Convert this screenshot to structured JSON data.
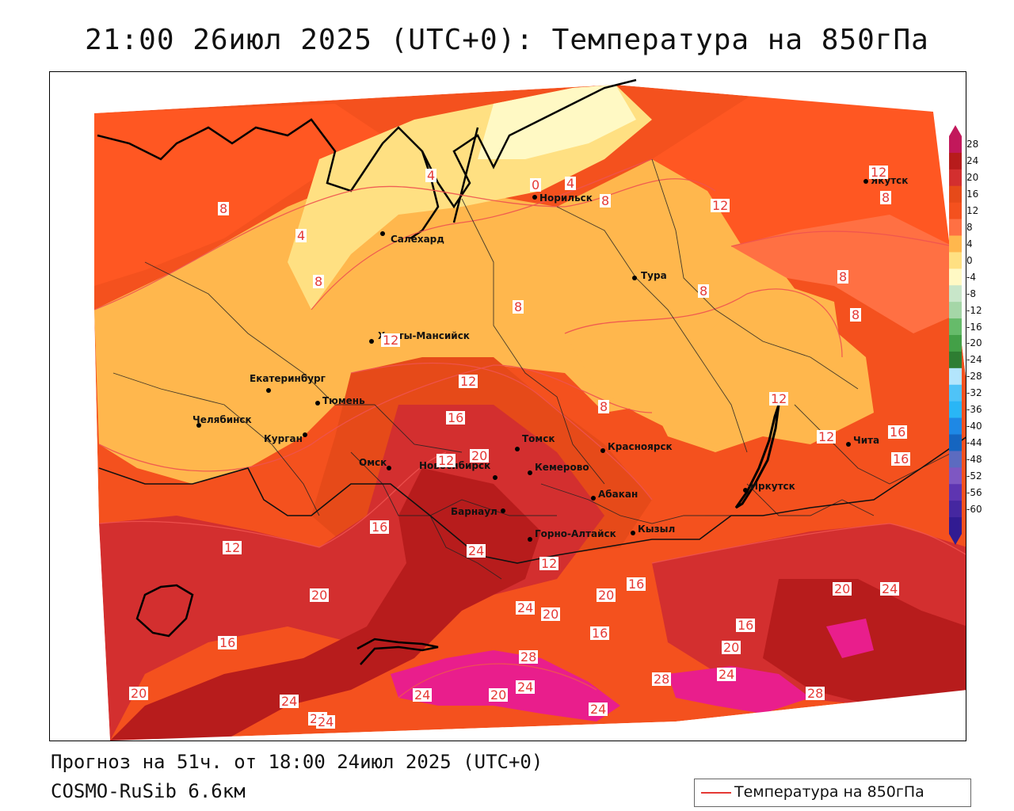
{
  "header": {
    "title": "21:00 26июл 2025 (UTC+0): Температура на 850гПа"
  },
  "footer": {
    "forecast": "Прогноз на 51ч. от 18:00 24июл 2025 (UTC+0)",
    "model": "COSMO-RuSib 6.6км"
  },
  "legend": {
    "label": "Температура на 850гПа",
    "line_color": "#e53935"
  },
  "colorbar": {
    "ticks": [
      "28",
      "24",
      "20",
      "16",
      "12",
      "8",
      "4",
      "0",
      "-4",
      "-8",
      "-12",
      "-16",
      "-20",
      "-24",
      "-28",
      "-32",
      "-36",
      "-40",
      "-44",
      "-48",
      "-52",
      "-56",
      "-60"
    ],
    "colors": [
      "#c2185b",
      "#b71c1c",
      "#d32f2f",
      "#e64a19",
      "#f4511e",
      "#ff7043",
      "#ffb74d",
      "#ffe082",
      "#fff9c4",
      "#c8e6c9",
      "#a5d6a7",
      "#66bb6a",
      "#43a047",
      "#2e7d32",
      "#b3e5fc",
      "#4fc3f7",
      "#29b6f6",
      "#1e88e5",
      "#1565c0",
      "#5c6bc0",
      "#7e57c2",
      "#5e35b1",
      "#4527a0",
      "#311b92"
    ]
  },
  "cities": [
    {
      "name": "Норильск"
    },
    {
      "name": "Якутск"
    },
    {
      "name": "Салехард"
    },
    {
      "name": "Тура"
    },
    {
      "name": "Ханты-Мансийск"
    },
    {
      "name": "Екатеринбург"
    },
    {
      "name": "Тюмень"
    },
    {
      "name": "Челябинск"
    },
    {
      "name": "Курган"
    },
    {
      "name": "Омск"
    },
    {
      "name": "Новосибирск"
    },
    {
      "name": "Томск"
    },
    {
      "name": "Кемерово"
    },
    {
      "name": "Красноярск"
    },
    {
      "name": "Абакан"
    },
    {
      "name": "Барнаул"
    },
    {
      "name": "Горно-Алтайск"
    },
    {
      "name": "Кызыл"
    },
    {
      "name": "Иркутск"
    },
    {
      "name": "Чита"
    }
  ],
  "isotherm_labels": [
    "4",
    "0",
    "4",
    "8",
    "12",
    "12",
    "8",
    "8",
    "4",
    "8",
    "8",
    "8",
    "8",
    "8",
    "12",
    "12",
    "16",
    "20",
    "8",
    "12",
    "12",
    "16",
    "16",
    "12",
    "12",
    "16",
    "20",
    "24",
    "24",
    "20",
    "20",
    "16",
    "16",
    "20",
    "20",
    "24",
    "24",
    "16",
    "28",
    "28",
    "28",
    "24",
    "20",
    "24",
    "24",
    "20",
    "24",
    "24",
    "24",
    "12",
    "16"
  ]
}
